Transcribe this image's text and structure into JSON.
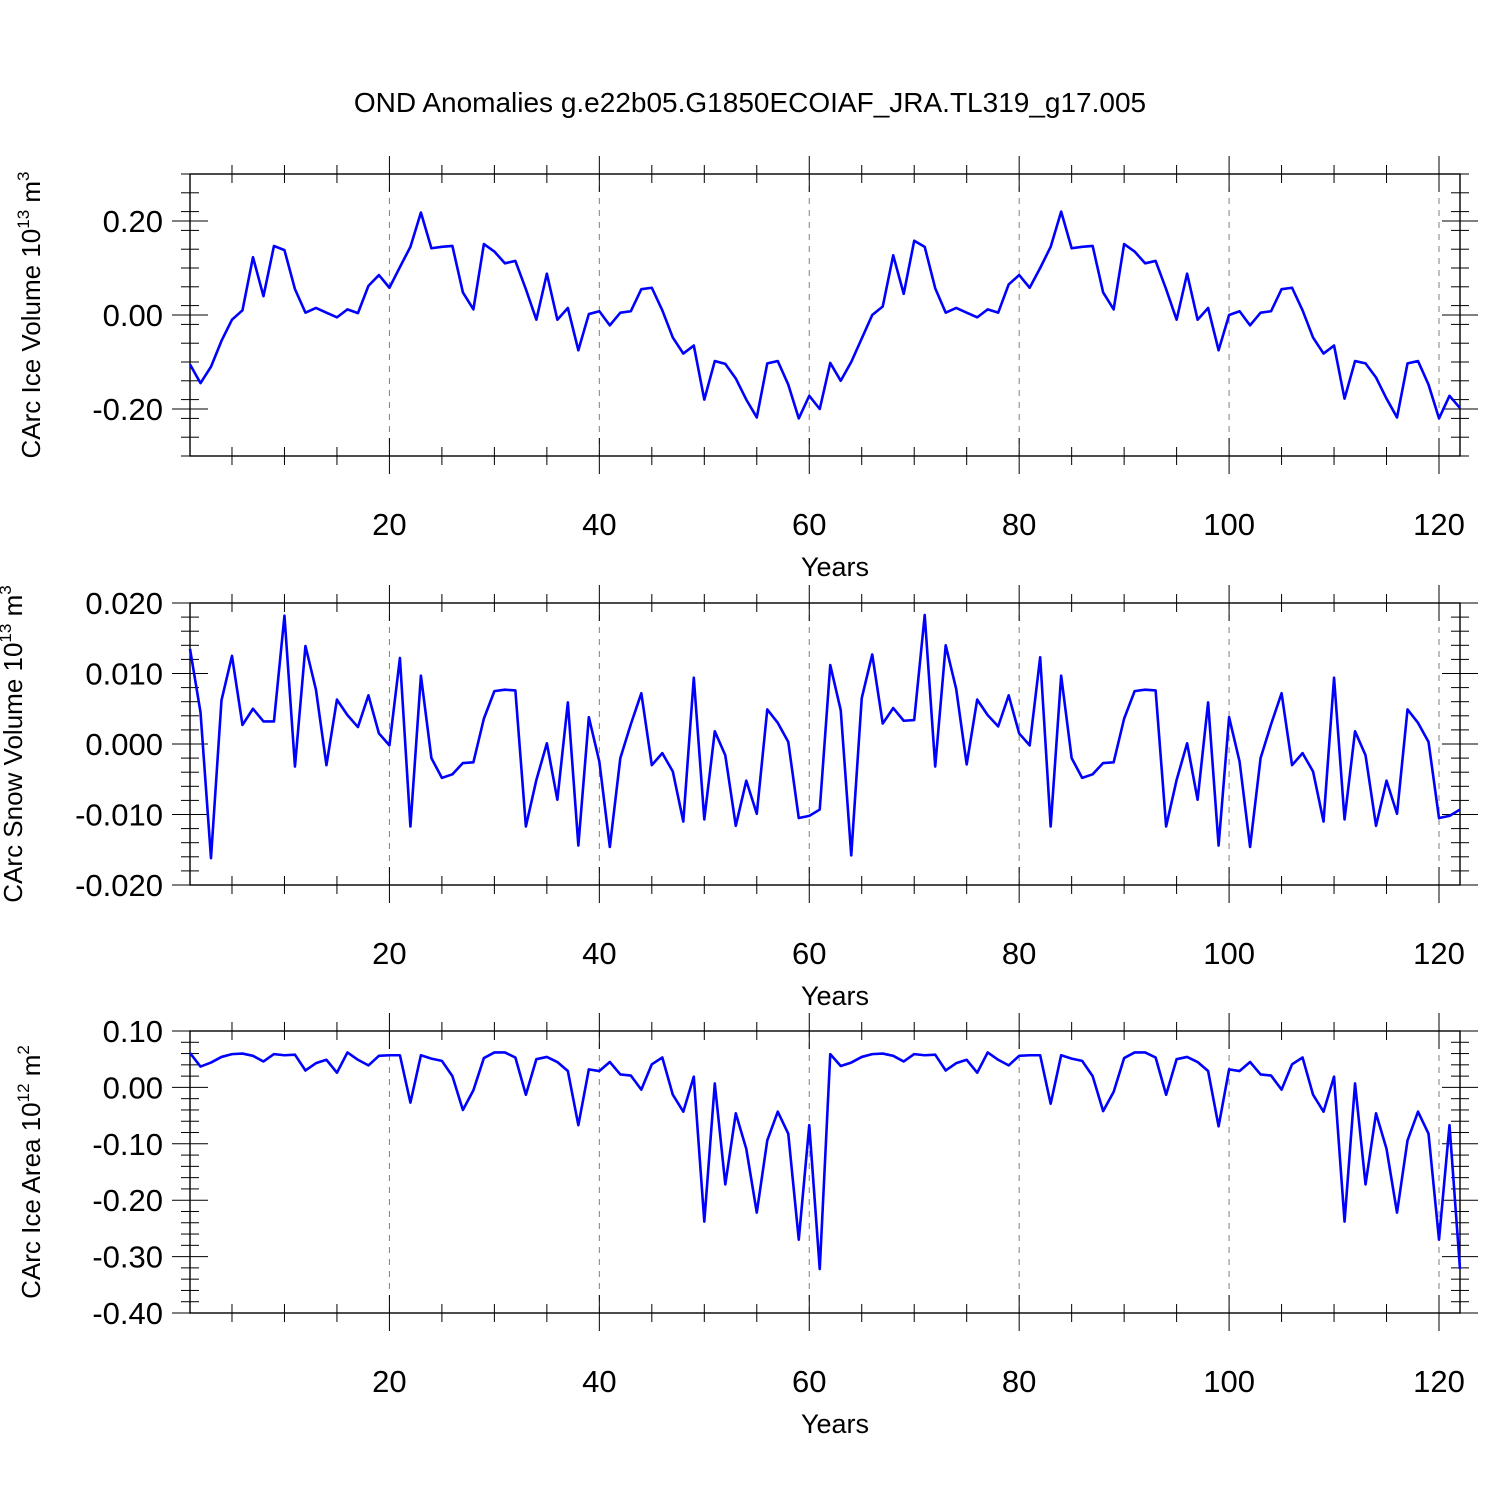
{
  "figure_title": "OND Anomalies g.e22b05.G1850ECOIAF_JRA.TL319_g17.005",
  "colors": {
    "line": "#0000ff",
    "axes": "#000000",
    "grid": "#808080",
    "background": "#ffffff"
  },
  "chart_data": [
    {
      "id": "ice-volume",
      "type": "line",
      "title": "OND Anomalies g.e22b05.G1850ECOIAF_JRA.TL319_g17.005",
      "xlabel": "Years",
      "ylabel_main": "CArc Ice Volume 10",
      "ylabel_sup": "13",
      "ylabel_unit": " m",
      "ylabel_unit_sup": "3",
      "xlim": [
        1,
        122
      ],
      "ylim": [
        -0.3,
        0.3
      ],
      "xticks": [
        20,
        40,
        60,
        80,
        100,
        120
      ],
      "xtick_labels": [
        "20",
        "40",
        "60",
        "80",
        "100",
        "120"
      ],
      "yticks": [
        -0.2,
        0.0,
        0.2
      ],
      "ytick_labels": [
        "-0.20",
        "0.00",
        "0.20"
      ],
      "grid": "x-dashed",
      "x": [
        1,
        2,
        3,
        4,
        5,
        6,
        7,
        8,
        9,
        10,
        11,
        12,
        13,
        14,
        15,
        16,
        17,
        18,
        19,
        20,
        21,
        22,
        23,
        24,
        25,
        26,
        27,
        28,
        29,
        30,
        31,
        32,
        33,
        34,
        35,
        36,
        37,
        38,
        39,
        40,
        41,
        42,
        43,
        44,
        45,
        46,
        47,
        48,
        49,
        50,
        51,
        52,
        53,
        54,
        55,
        56,
        57,
        58,
        59,
        60,
        61,
        62,
        63,
        64,
        65,
        66,
        67,
        68,
        69,
        70,
        71,
        72,
        73,
        74,
        75,
        76,
        77,
        78,
        79,
        80,
        81,
        82,
        83,
        84,
        85,
        86,
        87,
        88,
        89,
        90,
        91,
        92,
        93,
        94,
        95,
        96,
        97,
        98,
        99,
        100,
        101,
        102,
        103,
        104,
        105,
        106,
        107,
        108,
        109,
        110,
        111,
        112,
        113,
        114,
        115,
        116,
        117,
        118,
        119,
        120,
        121,
        122
      ],
      "values": [
        -0.105,
        -0.145,
        -0.11,
        -0.055,
        -0.01,
        0.01,
        0.123,
        0.04,
        0.147,
        0.138,
        0.055,
        0.005,
        0.015,
        0.005,
        -0.005,
        0.012,
        0.004,
        0.062,
        0.085,
        0.058,
        0.102,
        0.145,
        0.218,
        0.142,
        0.145,
        0.147,
        0.048,
        0.012,
        0.151,
        0.135,
        0.11,
        0.115,
        0.055,
        -0.01,
        0.088,
        -0.01,
        0.015,
        -0.075,
        0.002,
        0.008,
        -0.022,
        0.005,
        0.008,
        0.055,
        0.058,
        0.01,
        -0.048,
        -0.082,
        -0.065,
        -0.18,
        -0.098,
        -0.104,
        -0.135,
        -0.18,
        -0.218,
        -0.103,
        -0.098,
        -0.148,
        -0.22,
        -0.172,
        -0.2,
        -0.102,
        -0.14,
        -0.1,
        -0.05,
        0.0,
        0.018,
        0.127,
        0.045,
        0.158,
        0.145,
        0.057,
        0.005,
        0.015,
        0.005,
        -0.005,
        0.012,
        0.005,
        0.065,
        0.085,
        0.058,
        0.1,
        0.145,
        0.22,
        0.142,
        0.145,
        0.147,
        0.048,
        0.012,
        0.151,
        0.135,
        0.11,
        0.115,
        0.055,
        -0.01,
        0.088,
        -0.01,
        0.015,
        -0.075,
        0.0,
        0.008,
        -0.022,
        0.005,
        0.008,
        0.055,
        0.058,
        0.01,
        -0.048,
        -0.082,
        -0.065,
        -0.178,
        -0.098,
        -0.103,
        -0.133,
        -0.178,
        -0.218,
        -0.103,
        -0.098,
        -0.148,
        -0.22,
        -0.172,
        -0.198
      ]
    },
    {
      "id": "snow-volume",
      "type": "line",
      "xlabel": "Years",
      "ylabel_main": "CArc Snow Volume 10",
      "ylabel_sup": "13",
      "ylabel_unit": " m",
      "ylabel_unit_sup": "3",
      "xlim": [
        1,
        122
      ],
      "ylim": [
        -0.02,
        0.02
      ],
      "xticks": [
        20,
        40,
        60,
        80,
        100,
        120
      ],
      "xtick_labels": [
        "20",
        "40",
        "60",
        "80",
        "100",
        "120"
      ],
      "yticks": [
        -0.02,
        -0.01,
        0.0,
        0.01,
        0.02
      ],
      "ytick_labels": [
        "-0.020",
        "-0.010",
        "0.000",
        "0.010",
        "0.020"
      ],
      "grid": "x-dashed",
      "x": [
        1,
        2,
        3,
        4,
        5,
        6,
        7,
        8,
        9,
        10,
        11,
        12,
        13,
        14,
        15,
        16,
        17,
        18,
        19,
        20,
        21,
        22,
        23,
        24,
        25,
        26,
        27,
        28,
        29,
        30,
        31,
        32,
        33,
        34,
        35,
        36,
        37,
        38,
        39,
        40,
        41,
        42,
        43,
        44,
        45,
        46,
        47,
        48,
        49,
        50,
        51,
        52,
        53,
        54,
        55,
        56,
        57,
        58,
        59,
        60,
        61,
        62,
        63,
        64,
        65,
        66,
        67,
        68,
        69,
        70,
        71,
        72,
        73,
        74,
        75,
        76,
        77,
        78,
        79,
        80,
        81,
        82,
        83,
        84,
        85,
        86,
        87,
        88,
        89,
        90,
        91,
        92,
        93,
        94,
        95,
        96,
        97,
        98,
        99,
        100,
        101,
        102,
        103,
        104,
        105,
        106,
        107,
        108,
        109,
        110,
        111,
        112,
        113,
        114,
        115,
        116,
        117,
        118,
        119,
        120,
        121,
        122
      ],
      "values": [
        0.0135,
        0.0045,
        -0.0162,
        0.0062,
        0.0125,
        0.0027,
        0.005,
        0.0032,
        0.0032,
        0.0182,
        -0.0032,
        0.0139,
        0.0077,
        -0.003,
        0.0063,
        0.0041,
        0.0024,
        0.0069,
        0.0015,
        -0.0002,
        0.0122,
        -0.0117,
        0.0097,
        -0.002,
        -0.0048,
        -0.0043,
        -0.0027,
        -0.0026,
        0.0036,
        0.0075,
        0.0077,
        0.0076,
        -0.0117,
        -0.0051,
        0.0001,
        -0.0079,
        0.0059,
        -0.0144,
        0.0038,
        -0.0025,
        -0.0146,
        -0.002,
        0.0028,
        0.0072,
        -0.003,
        -0.0013,
        -0.0039,
        -0.011,
        0.0094,
        -0.0107,
        0.0018,
        -0.0016,
        -0.0116,
        -0.0052,
        -0.0099,
        0.0049,
        0.003,
        0.0003,
        -0.0105,
        -0.0102,
        -0.0093,
        0.0112,
        0.0048,
        -0.0158,
        0.0065,
        0.0127,
        0.0029,
        0.0051,
        0.0033,
        0.0034,
        0.0183,
        -0.0032,
        0.014,
        0.0078,
        -0.0029,
        0.0063,
        0.0041,
        0.0025,
        0.0069,
        0.0015,
        -0.0002,
        0.0123,
        -0.0117,
        0.0097,
        -0.002,
        -0.0048,
        -0.0043,
        -0.0027,
        -0.0026,
        0.0036,
        0.0075,
        0.0077,
        0.0076,
        -0.0117,
        -0.0051,
        0.0001,
        -0.0079,
        0.0059,
        -0.0144,
        0.0038,
        -0.0025,
        -0.0146,
        -0.002,
        0.0028,
        0.0072,
        -0.003,
        -0.0013,
        -0.0039,
        -0.011,
        0.0094,
        -0.0107,
        0.0018,
        -0.0016,
        -0.0116,
        -0.0052,
        -0.0099,
        0.0049,
        0.003,
        0.0003,
        -0.0105,
        -0.0102,
        -0.0093
      ]
    },
    {
      "id": "ice-area",
      "type": "line",
      "xlabel": "Years",
      "ylabel_main": "CArc Ice Area 10",
      "ylabel_sup": "12",
      "ylabel_unit": " m",
      "ylabel_unit_sup": "2",
      "xlim": [
        1,
        122
      ],
      "ylim": [
        -0.4,
        0.1
      ],
      "xticks": [
        20,
        40,
        60,
        80,
        100,
        120
      ],
      "xtick_labels": [
        "20",
        "40",
        "60",
        "80",
        "100",
        "120"
      ],
      "yticks": [
        -0.4,
        -0.3,
        -0.2,
        -0.1,
        0.0,
        0.1
      ],
      "ytick_labels": [
        "-0.40",
        "-0.30",
        "-0.20",
        "-0.10",
        "0.00",
        "0.10"
      ],
      "grid": "x-dashed",
      "x": [
        1,
        2,
        3,
        4,
        5,
        6,
        7,
        8,
        9,
        10,
        11,
        12,
        13,
        14,
        15,
        16,
        17,
        18,
        19,
        20,
        21,
        22,
        23,
        24,
        25,
        26,
        27,
        28,
        29,
        30,
        31,
        32,
        33,
        34,
        35,
        36,
        37,
        38,
        39,
        40,
        41,
        42,
        43,
        44,
        45,
        46,
        47,
        48,
        49,
        50,
        51,
        52,
        53,
        54,
        55,
        56,
        57,
        58,
        59,
        60,
        61,
        62,
        63,
        64,
        65,
        66,
        67,
        68,
        69,
        70,
        71,
        72,
        73,
        74,
        75,
        76,
        77,
        78,
        79,
        80,
        81,
        82,
        83,
        84,
        85,
        86,
        87,
        88,
        89,
        90,
        91,
        92,
        93,
        94,
        95,
        96,
        97,
        98,
        99,
        100,
        101,
        102,
        103,
        104,
        105,
        106,
        107,
        108,
        109,
        110,
        111,
        112,
        113,
        114,
        115,
        116,
        117,
        118,
        119,
        120,
        121,
        122
      ],
      "values": [
        0.061,
        0.037,
        0.044,
        0.054,
        0.059,
        0.06,
        0.056,
        0.046,
        0.059,
        0.057,
        0.058,
        0.03,
        0.043,
        0.049,
        0.026,
        0.062,
        0.049,
        0.039,
        0.056,
        0.057,
        0.057,
        -0.027,
        0.057,
        0.051,
        0.047,
        0.02,
        -0.04,
        -0.005,
        0.052,
        0.062,
        0.062,
        0.053,
        -0.013,
        0.05,
        0.054,
        0.045,
        0.029,
        -0.067,
        0.032,
        0.029,
        0.045,
        0.023,
        0.021,
        -0.004,
        0.041,
        0.053,
        -0.013,
        -0.043,
        0.019,
        -0.238,
        0.007,
        -0.172,
        -0.046,
        -0.109,
        -0.222,
        -0.094,
        -0.043,
        -0.082,
        -0.27,
        -0.067,
        -0.322,
        0.059,
        0.038,
        0.044,
        0.054,
        0.059,
        0.06,
        0.056,
        0.046,
        0.059,
        0.057,
        0.058,
        0.03,
        0.043,
        0.049,
        0.026,
        0.062,
        0.049,
        0.039,
        0.056,
        0.057,
        0.057,
        -0.029,
        0.057,
        0.051,
        0.047,
        0.02,
        -0.042,
        -0.008,
        0.052,
        0.062,
        0.062,
        0.053,
        -0.013,
        0.05,
        0.054,
        0.045,
        0.029,
        -0.069,
        0.032,
        0.029,
        0.045,
        0.023,
        0.021,
        -0.004,
        0.041,
        0.053,
        -0.013,
        -0.043,
        0.019,
        -0.238,
        0.007,
        -0.172,
        -0.046,
        -0.109,
        -0.222,
        -0.094,
        -0.043,
        -0.082,
        -0.27,
        -0.067,
        -0.322
      ]
    }
  ]
}
